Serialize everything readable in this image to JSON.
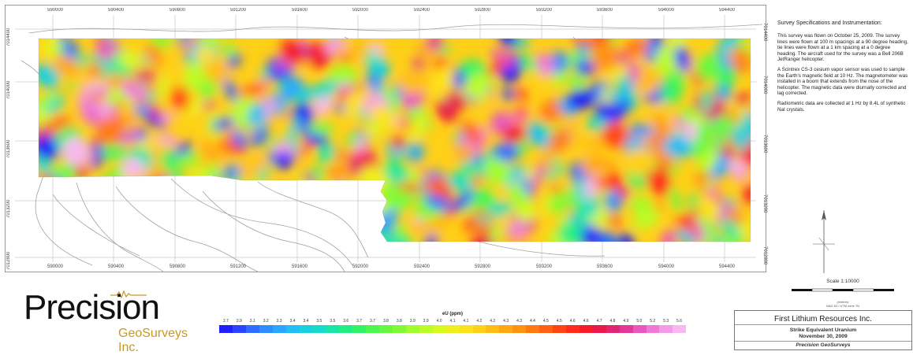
{
  "map": {
    "top_easting_ticks": [
      "590000",
      "590400",
      "590800",
      "591200",
      "591600",
      "592000",
      "592400",
      "592800",
      "593200",
      "593600",
      "594000",
      "594400"
    ],
    "bottom_easting_ticks": [
      "590000",
      "590400",
      "590800",
      "591200",
      "591600",
      "592000",
      "592400",
      "592800",
      "593200",
      "593600",
      "594000",
      "594400"
    ],
    "left_northing_ticks": [
      "7014400",
      "7014000",
      "7013600",
      "7013200",
      "7012800"
    ],
    "right_northing_ticks": [
      "7014400",
      "7014000",
      "7013600",
      "7013200",
      "7012800"
    ]
  },
  "notes": {
    "heading": "Survey Specifications and Instrumentation:",
    "paragraph1": "This survey was flown on October 25, 2009. The survey lines were flown at 100 m spacings at a 90 degree heading, tie lines were flown at a 1 km spacing at a 0 degree heading. The aircraft used for the survey was a Bell 206B JetRanger helicopter.",
    "paragraph2": "A Scintrex CS-3 cesium vapor sensor was used to sample the Earth's magnetic field at 10 Hz. The magnetometer was installed in a boom that extends from the nose of the helicopter. The magnetic data were diurnally corrected and lag corrected.",
    "paragraph3": "Radiometric data are collected at 1 Hz by 8.4L of synthetic NaI crystals."
  },
  "scale": {
    "text": "Scale 1:10000",
    "unit_label": "(meters)",
    "caption": "NAD 83 / UTM zone 7N"
  },
  "logo": {
    "main": "Precision",
    "sub": "GeoSurveys Inc."
  },
  "legend": {
    "title": "eU (ppm)",
    "labels": [
      "2.7",
      "2.9",
      "3.1",
      "3.2",
      "3.3",
      "3.4",
      "3.4",
      "3.5",
      "3.5",
      "3.6",
      "3.7",
      "3.7",
      "3.8",
      "3.8",
      "3.9",
      "3.9",
      "4.0",
      "4.1",
      "4.1",
      "4.2",
      "4.2",
      "4.3",
      "4.3",
      "4.4",
      "4.5",
      "4.5",
      "4.6",
      "4.6",
      "4.7",
      "4.8",
      "4.9",
      "5.0",
      "5.2",
      "5.3",
      "5.6"
    ],
    "colors": [
      "#1f1fff",
      "#2a45ff",
      "#2f6cff",
      "#2f8cff",
      "#2aa6ff",
      "#22bdf2",
      "#18d0e0",
      "#14dcc8",
      "#18e6a8",
      "#22ee85",
      "#33f268",
      "#4cf550",
      "#66f840",
      "#80fa36",
      "#a0fc2c",
      "#bcfc26",
      "#d6fa20",
      "#eef01c",
      "#fce21a",
      "#ffd018",
      "#ffbd16",
      "#ffa814",
      "#ff9212",
      "#ff7a12",
      "#ff6012",
      "#ff4414",
      "#ff2a1a",
      "#f51c2c",
      "#e8184a",
      "#e02672",
      "#e03a98",
      "#e858be",
      "#ef7ad6",
      "#f59ae6",
      "#f8b8f0"
    ]
  },
  "title_block": {
    "company": "First Lithium Resources Inc.",
    "line1": "Strike Equivalent Uranium",
    "line2": "November 30, 2009",
    "line3": "Precision GeoSurveys"
  }
}
